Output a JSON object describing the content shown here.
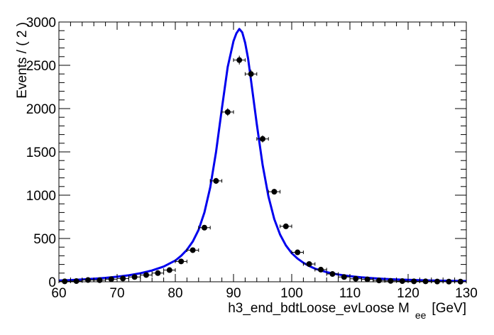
{
  "chart_data": {
    "type": "scatter",
    "title": "",
    "xlabel": "h3_end_bdtLoose_evLoose  M",
    "xlabel_subscript": "ee",
    "xlabel_unit": "[GeV]",
    "ylabel": "Events / ( 2 )",
    "xlim": [
      60,
      130
    ],
    "ylim": [
      0,
      3000
    ],
    "x_ticks": [
      60,
      70,
      80,
      90,
      100,
      110,
      120,
      130
    ],
    "y_ticks": [
      0,
      500,
      1000,
      1500,
      2000,
      2500,
      3000
    ],
    "grid": false,
    "legend": "none",
    "series": [
      {
        "kind": "points-with-errors",
        "color": "#000000",
        "x_err": 1,
        "x": [
          61,
          63,
          65,
          67,
          69,
          71,
          73,
          75,
          77,
          79,
          81,
          83,
          85,
          87,
          89,
          91,
          93,
          95,
          97,
          99,
          101,
          103,
          105,
          107,
          109,
          111,
          113,
          115,
          117,
          119,
          121,
          123,
          125,
          127,
          129
        ],
        "y": [
          5,
          8,
          20,
          18,
          30,
          38,
          55,
          78,
          100,
          135,
          235,
          365,
          625,
          1165,
          1960,
          2560,
          2400,
          1650,
          1040,
          640,
          340,
          205,
          140,
          90,
          55,
          35,
          28,
          15,
          10,
          8,
          5,
          5,
          3,
          2,
          2
        ],
        "y_err": [
          2,
          3,
          4,
          4,
          5,
          6,
          7,
          9,
          10,
          12,
          15,
          19,
          25,
          34,
          44,
          51,
          49,
          41,
          32,
          25,
          18,
          14,
          12,
          9,
          7,
          6,
          5,
          4,
          3,
          3,
          2,
          2,
          2,
          1,
          1
        ]
      },
      {
        "kind": "line",
        "color": "#0000ee",
        "x": [
          60,
          62,
          64,
          66,
          68,
          70,
          72,
          74,
          76,
          78,
          80,
          81,
          82,
          83,
          84,
          85,
          86,
          87,
          88,
          89,
          90,
          90.5,
          91,
          91.5,
          92,
          92.5,
          93,
          94,
          95,
          96,
          97,
          98,
          99,
          100,
          101,
          102,
          103,
          104,
          106,
          108,
          110,
          112,
          114,
          116,
          118,
          120,
          122,
          124,
          126,
          128,
          130
        ],
        "y": [
          15,
          20,
          27,
          35,
          45,
          58,
          75,
          98,
          130,
          175,
          245,
          300,
          370,
          465,
          600,
          800,
          1090,
          1500,
          2000,
          2480,
          2780,
          2870,
          2920,
          2880,
          2760,
          2580,
          2330,
          1820,
          1350,
          985,
          725,
          545,
          420,
          330,
          268,
          220,
          182,
          152,
          111,
          84,
          65,
          51,
          41,
          33,
          27,
          22,
          18,
          15,
          12,
          10,
          8
        ]
      }
    ]
  }
}
